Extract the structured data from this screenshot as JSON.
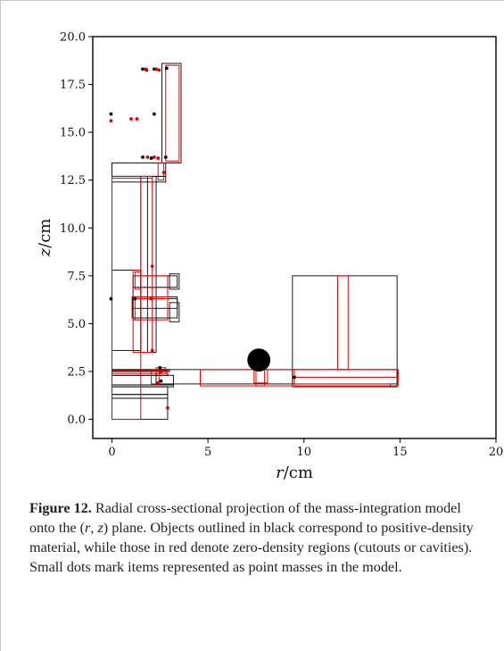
{
  "figure": {
    "label": "Figure 12.",
    "caption": [
      {
        "t": "Radial cross-sectional projection of the mass-integration model onto the ("
      },
      {
        "t": "r",
        "i": true
      },
      {
        "t": ", "
      },
      {
        "t": "z",
        "i": true
      },
      {
        "t": ") plane. Objects outlined in black correspond to positive-density material, while those in red denote zero-density regions (cutouts or cavities). Small dots mark items represented as point masses in the model."
      }
    ]
  },
  "chart_data": {
    "type": "diagram",
    "xlabel": "r/cm",
    "ylabel": "z/cm",
    "xlim": [
      -1,
      20
    ],
    "ylim": [
      -1,
      20
    ],
    "x_ticks": [
      0,
      5,
      10,
      15,
      20
    ],
    "x_tick_labels": [
      "0",
      "5",
      "10",
      "15",
      "20"
    ],
    "y_ticks": [
      0,
      2.5,
      5,
      7.5,
      10,
      12.5,
      15,
      17.5,
      20
    ],
    "y_tick_labels": [
      "0.0",
      "2.5",
      "5.0",
      "7.5",
      "10.0",
      "12.5",
      "15.0",
      "17.5",
      "20.0"
    ],
    "grid": false,
    "colors": {
      "positive": "#000000",
      "zero_density": "#dd0000"
    },
    "black_rects": [
      [
        2.6,
        13.4,
        3.6,
        18.6
      ],
      [
        0.0,
        12.7,
        2.8,
        13.4
      ],
      [
        0.0,
        12.4,
        2.8,
        12.7
      ],
      [
        1.85,
        3.5,
        2.3,
        12.7
      ],
      [
        0.0,
        2.3,
        2.9,
        2.6
      ],
      [
        0.0,
        1.8,
        3.2,
        2.3
      ],
      [
        0.0,
        1.7,
        3.2,
        1.8
      ],
      [
        0.0,
        1.3,
        2.9,
        1.7
      ],
      [
        0.0,
        1.1,
        2.9,
        1.3
      ],
      [
        0.0,
        0.0,
        2.9,
        1.1
      ],
      [
        1.1,
        6.9,
        3.4,
        7.5
      ],
      [
        1.1,
        5.8,
        3.4,
        6.3
      ],
      [
        1.05,
        5.3,
        3.4,
        6.4
      ],
      [
        3.0,
        6.8,
        3.5,
        7.6
      ],
      [
        3.0,
        5.1,
        3.5,
        6.1
      ],
      [
        0.0,
        3.6,
        1.5,
        7.8
      ],
      [
        2.3,
        1.85,
        9.4,
        2.6
      ],
      [
        9.4,
        1.7,
        14.85,
        2.6
      ],
      [
        9.4,
        1.85,
        14.85,
        7.5
      ],
      [
        0.0,
        2.5,
        3.0,
        2.6
      ]
    ],
    "red_rects": [
      [
        2.8,
        13.5,
        3.5,
        18.5
      ],
      [
        2.4,
        12.5,
        2.7,
        13.4
      ],
      [
        0.0,
        12.6,
        2.1,
        12.7
      ],
      [
        0.0,
        0.0,
        1.5,
        12.7
      ],
      [
        1.5,
        3.5,
        2.1,
        12.7
      ],
      [
        1.1,
        3.5,
        1.5,
        7.8
      ],
      [
        1.2,
        6.8,
        1.5,
        7.7
      ],
      [
        1.2,
        5.2,
        1.5,
        6.4
      ],
      [
        1.1,
        6.9,
        2.9,
        7.5
      ],
      [
        1.1,
        5.2,
        2.9,
        6.3
      ],
      [
        1.1,
        6.4,
        2.9,
        6.9
      ],
      [
        0.0,
        2.4,
        2.9,
        2.55
      ],
      [
        2.3,
        2.4,
        2.8,
        2.7
      ],
      [
        2.05,
        1.85,
        2.45,
        2.6
      ],
      [
        4.6,
        1.75,
        9.4,
        2.6
      ],
      [
        7.5,
        1.75,
        7.95,
        2.6
      ],
      [
        7.4,
        1.9,
        8.1,
        2.6
      ],
      [
        9.5,
        1.75,
        14.9,
        2.6
      ],
      [
        9.5,
        1.7,
        14.5,
        1.85
      ],
      [
        11.75,
        2.6,
        12.3,
        7.5
      ],
      [
        9.5,
        2.2,
        14.9,
        2.6
      ]
    ],
    "black_points": [
      [
        1.6,
        18.3
      ],
      [
        1.8,
        18.25
      ],
      [
        2.2,
        18.3
      ],
      [
        2.85,
        18.35
      ],
      [
        -0.05,
        15.95
      ],
      [
        2.2,
        15.95
      ],
      [
        1.6,
        13.7
      ],
      [
        2.05,
        13.65
      ],
      [
        2.8,
        13.7
      ],
      [
        -0.05,
        6.3
      ],
      [
        1.2,
        6.3
      ],
      [
        2.5,
        2.7
      ],
      [
        2.55,
        2.0
      ],
      [
        9.5,
        2.2
      ]
    ],
    "red_points": [
      [
        1.75,
        18.3
      ],
      [
        2.3,
        18.3
      ],
      [
        2.45,
        18.25
      ],
      [
        -0.05,
        15.6
      ],
      [
        1.0,
        15.7
      ],
      [
        1.3,
        15.7
      ],
      [
        1.85,
        13.7
      ],
      [
        2.2,
        13.7
      ],
      [
        2.4,
        13.65
      ],
      [
        2.7,
        12.9
      ],
      [
        2.1,
        8.0
      ],
      [
        2.05,
        6.3
      ],
      [
        2.1,
        3.6
      ],
      [
        2.55,
        2.5
      ],
      [
        2.4,
        1.9
      ],
      [
        2.9,
        0.6
      ]
    ],
    "filled_circle": {
      "center": [
        7.65,
        3.1
      ],
      "radius": 0.6
    }
  }
}
